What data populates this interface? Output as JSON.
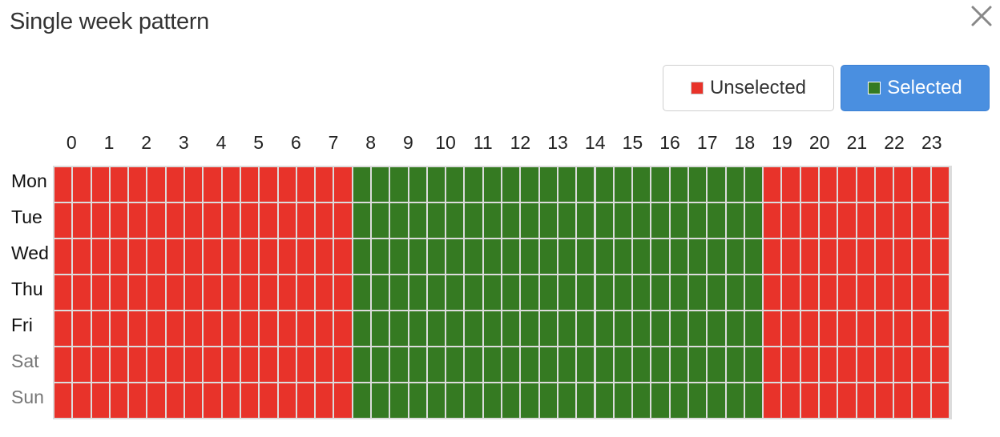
{
  "dialog": {
    "title": "Single week pattern"
  },
  "legend": {
    "unselected_label": "Unselected",
    "selected_label": "Selected"
  },
  "colors": {
    "unselected": "#e8332a",
    "selected": "#357a22",
    "selected_button": "#4a8fe0"
  },
  "hours": [
    "0",
    "1",
    "2",
    "3",
    "4",
    "5",
    "6",
    "7",
    "8",
    "9",
    "10",
    "11",
    "12",
    "13",
    "14",
    "15",
    "16",
    "17",
    "18",
    "19",
    "20",
    "21",
    "22",
    "23"
  ],
  "days": [
    {
      "label": "Mon",
      "weekend": false
    },
    {
      "label": "Tue",
      "weekend": false
    },
    {
      "label": "Wed",
      "weekend": false
    },
    {
      "label": "Thu",
      "weekend": false
    },
    {
      "label": "Fri",
      "weekend": false
    },
    {
      "label": "Sat",
      "weekend": true
    },
    {
      "label": "Sun",
      "weekend": true
    }
  ],
  "slots_per_hour": 2,
  "selected_hours": {
    "start": 8,
    "end": 19
  }
}
